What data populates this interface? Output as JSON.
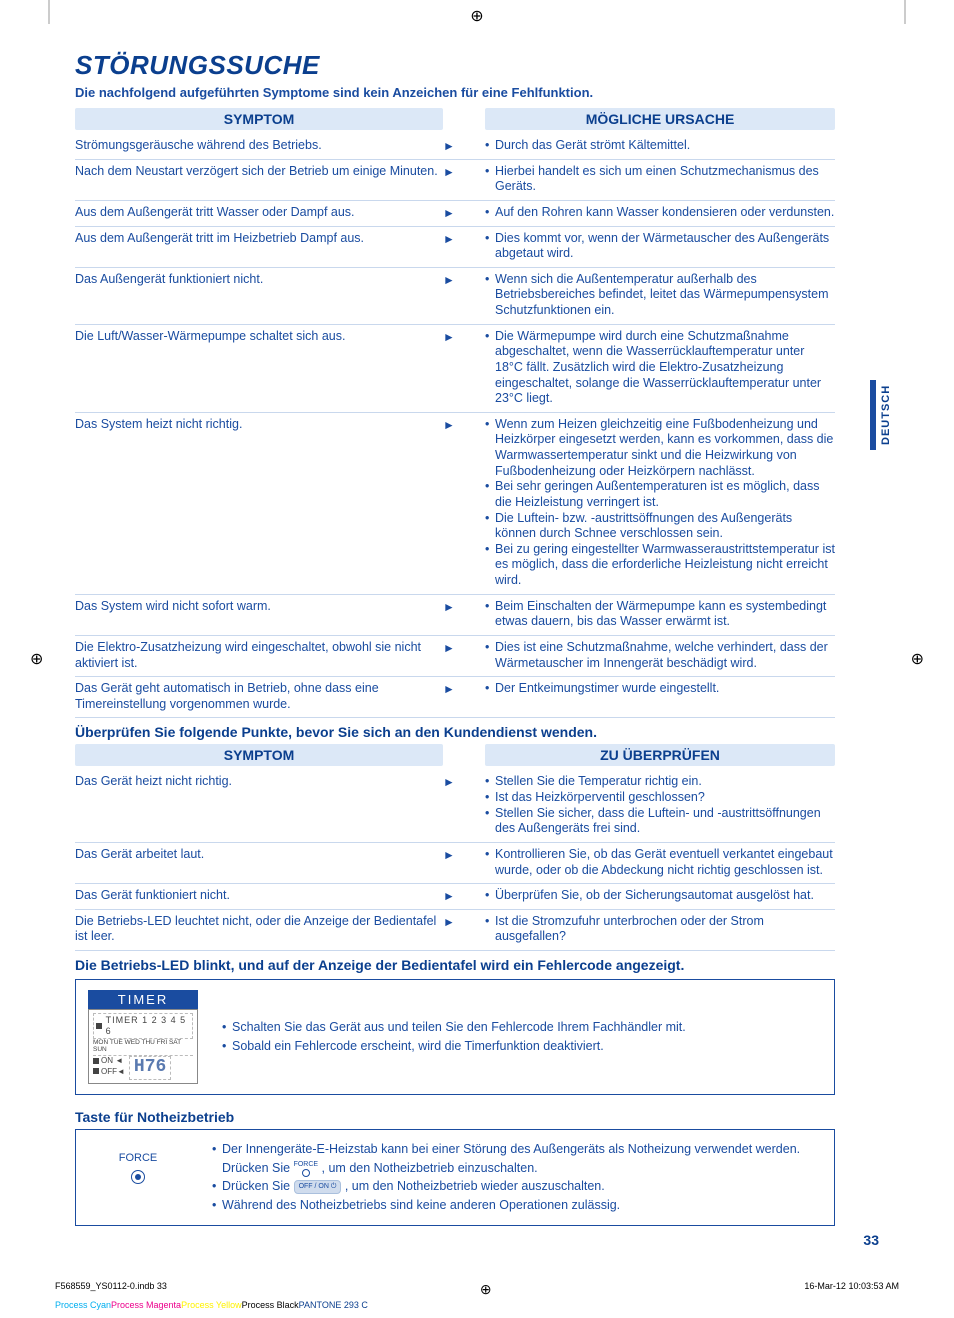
{
  "cropMarks": {
    "glyph": "⊕"
  },
  "title": "STÖRUNGSSUCHE",
  "subtitle": "Die nachfolgend aufgeführten Symptome sind kein Anzeichen für eine Fehlfunktion.",
  "table1": {
    "headLeft": "SYMPTOM",
    "headRight": "MÖGLICHE URSACHE",
    "rows": [
      {
        "s": "Strömungsgeräusche während des Betriebs.",
        "c": [
          "Durch das Gerät strömt Kältemittel."
        ]
      },
      {
        "s": "Nach dem Neustart verzögert sich der Betrieb um einige Minuten.",
        "c": [
          "Hierbei handelt es sich um einen Schutzmechanismus des Geräts."
        ]
      },
      {
        "s": "Aus dem Außengerät tritt Wasser oder Dampf aus.",
        "c": [
          "Auf den Rohren kann Wasser kondensieren oder verdunsten."
        ]
      },
      {
        "s": "Aus dem Außengerät tritt im Heizbetrieb Dampf aus.",
        "c": [
          "Dies kommt vor, wenn der Wärmetauscher des Außengeräts abgetaut wird."
        ]
      },
      {
        "s": "Das Außengerät funktioniert nicht.",
        "c": [
          "Wenn sich die Außentemperatur außerhalb des Betriebsbereiches befindet, leitet das Wärmepumpensystem Schutzfunktionen ein."
        ]
      },
      {
        "s": "Die Luft/Wasser-Wärmepumpe schaltet sich aus.",
        "c": [
          "Die Wärmepumpe wird durch eine Schutzmaßnahme abgeschaltet, wenn die Wasserrücklauftemperatur unter 18°C fällt. Zusätzlich wird die Elektro-Zusatzheizung eingeschaltet, solange die Wasserrücklauftemperatur unter 23°C liegt."
        ]
      },
      {
        "s": "Das System heizt nicht richtig.",
        "c": [
          "Wenn zum Heizen gleichzeitig eine Fußbodenheizung und Heizkörper eingesetzt werden, kann es vorkommen, dass die Warmwassertemperatur sinkt und die Heizwirkung von Fußbodenheizung oder Heizkörpern nachlässt.",
          "Bei sehr geringen Außentemperaturen ist es möglich, dass die Heizleistung verringert ist.",
          "Die Luftein- bzw. -austrittsöffnungen des Außengeräts können durch Schnee verschlossen sein.",
          "Bei zu gering eingestellter Warmwasseraustrittstemperatur ist es möglich, dass die erforderliche Heizleistung nicht erreicht wird."
        ]
      },
      {
        "s": "Das System wird nicht sofort warm.",
        "c": [
          "Beim Einschalten der Wärmepumpe kann es systembedingt etwas dauern, bis das Wasser erwärmt ist."
        ]
      },
      {
        "s": "Die Elektro-Zusatzheizung wird eingeschaltet, obwohl sie nicht aktiviert ist.",
        "c": [
          "Dies ist eine Schutzmaßnahme, welche verhindert, dass der Wärmetauscher im Innengerät beschädigt wird."
        ]
      },
      {
        "s": "Das Gerät geht automatisch in Betrieb, ohne dass eine Timereinstellung vorgenommen wurde.",
        "c": [
          "Der Entkeimungstimer wurde eingestellt."
        ]
      }
    ]
  },
  "section2Heading": "Überprüfen Sie folgende Punkte, bevor Sie sich an den Kundendienst wenden.",
  "table2": {
    "headLeft": "SYMPTOM",
    "headRight": "ZU ÜBERPRÜFEN",
    "rows": [
      {
        "s": "Das Gerät heizt nicht richtig.",
        "c": [
          "Stellen Sie die Temperatur richtig ein.",
          "Ist das Heizkörperventil geschlossen?",
          "Stellen Sie sicher, dass die Luftein- und -austrittsöffnungen des Außengeräts frei sind."
        ]
      },
      {
        "s": "Das Gerät arbeitet laut.",
        "c": [
          "Kontrollieren Sie, ob das Gerät eventuell verkantet eingebaut wurde, oder ob die Abdeckung nicht richtig geschlossen ist."
        ]
      },
      {
        "s": "Das Gerät funktioniert nicht.",
        "c": [
          "Überprüfen Sie, ob der Sicherungsautomat ausgelöst hat."
        ]
      },
      {
        "s": "Die Betriebs-LED leuchtet nicht, oder die Anzeige der Bedientafel ist leer.",
        "c": [
          "Ist die Stromzufuhr unterbrochen oder der Strom ausgefallen?"
        ]
      }
    ]
  },
  "ledHeading": "Die Betriebs-LED blinkt, und auf der Anzeige der Bedientafel wird ein Fehlercode angezeigt.",
  "timer": {
    "header": "TIMER",
    "line1": "TIMER 1 2 3 4 5 6",
    "days": "MON TUE WED THU FRI SAT SUN",
    "on": "ON ◄",
    "off": "OFF◄",
    "code": "H76"
  },
  "ledBullets": [
    "Schalten Sie das Gerät aus und teilen Sie den Fehlercode Ihrem Fachhändler mit.",
    "Sobald ein Fehlercode erscheint, wird die Timerfunktion deaktiviert."
  ],
  "forceHeading": "Taste für Notheizbetrieb",
  "forceBtn": "FORCE",
  "forceBullets": [
    {
      "pre": "Der Innengeräte-E-Heizstab kann bei einer Störung des Außengeräts als Notheizung verwendet werden. Drücken Sie ",
      "btn": "force",
      "post": " , um den Notheizbetrieb einzuschalten."
    },
    {
      "pre": "Drücken Sie ",
      "btn": "offon",
      "post": " , um den Notheizbetrieb wieder auszuschalten."
    },
    {
      "pre": "Während des Notheizbetriebs sind keine anderen Operationen zulässig.",
      "btn": "",
      "post": ""
    }
  ],
  "offonLabel": "OFF / ON ⏻",
  "sideTab": "DEUTSCH",
  "pageNum": "33",
  "footer": {
    "left": "F568559_YS0112-0.indb   33",
    "right": "16-Mar-12   10:03:53 AM"
  },
  "colors": {
    "cyan": "Process Cyan",
    "magenta": "Process Magenta",
    "yellow": "Process Yellow",
    "black": "Process Black",
    "pantone": "PANTONE 293 C"
  },
  "arrow": "►"
}
